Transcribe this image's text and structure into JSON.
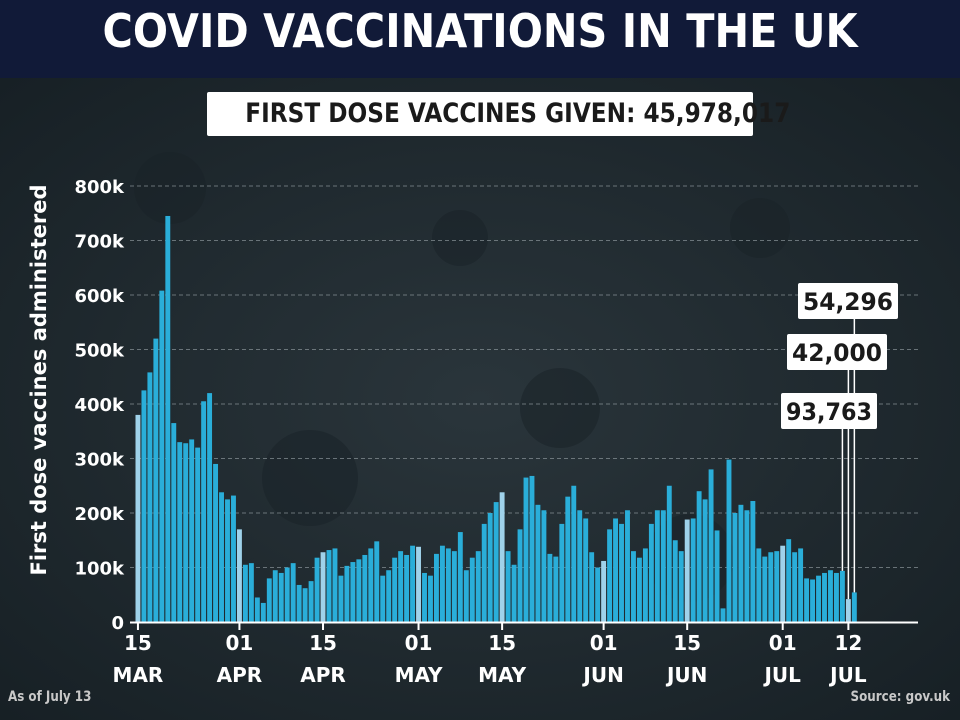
{
  "header": {
    "title": "COVID VACCINATIONS IN THE UK",
    "subtitle": "FIRST DOSE VACCINES GIVEN: 45,978,017"
  },
  "footer": {
    "as_of": "As of July 13",
    "source": "Source: gov.uk"
  },
  "colors": {
    "header_bg": "#111a38",
    "background": "#1f2a2f",
    "bar": "#2aaed9",
    "bar_highlight": "#9fd2ea",
    "text": "#ffffff"
  },
  "chart_data": {
    "type": "bar",
    "title": "COVID VACCINATIONS IN THE UK",
    "ylabel": "First dose vaccines administered",
    "xlabel": "",
    "ylim": [
      0,
      800000
    ],
    "y_ticks": [
      "0",
      "100k",
      "200k",
      "300k",
      "400k",
      "500k",
      "600k",
      "700k",
      "800k"
    ],
    "x_ticks": [
      {
        "day": 1,
        "label": [
          "15",
          "MAR"
        ]
      },
      {
        "day": 18,
        "label": [
          "01",
          "APR"
        ]
      },
      {
        "day": 32,
        "label": [
          "15",
          "APR"
        ]
      },
      {
        "day": 48,
        "label": [
          "01",
          "MAY"
        ]
      },
      {
        "day": 62,
        "label": [
          "15",
          "MAY"
        ]
      },
      {
        "day": 79,
        "label": [
          "01",
          "JUN"
        ]
      },
      {
        "day": 93,
        "label": [
          "15",
          "JUN"
        ]
      },
      {
        "day": 109,
        "label": [
          "01",
          "JUL"
        ]
      },
      {
        "day": 120,
        "label": [
          "12",
          "JUL"
        ]
      }
    ],
    "grid": true,
    "series": [
      {
        "values": [
          380000,
          425000,
          458000,
          520000,
          608000,
          745000,
          365000,
          330000,
          328000,
          335000,
          320000,
          405000,
          420000,
          290000,
          238000,
          225000,
          232000,
          170000,
          105000,
          108000,
          45000,
          35000,
          80000,
          95000,
          90000,
          100000,
          108000,
          68000,
          62000,
          75000,
          118000,
          128000,
          132000,
          135000,
          85000,
          103000,
          110000,
          115000,
          123000,
          135000,
          148000,
          85000,
          95000,
          118000,
          130000,
          123000,
          140000,
          138000,
          90000,
          85000,
          125000,
          140000,
          135000,
          130000,
          165000,
          95000,
          118000,
          130000,
          180000,
          200000,
          220000,
          238000,
          130000,
          105000,
          170000,
          265000,
          268000,
          215000,
          205000,
          125000,
          120000,
          180000,
          230000,
          250000,
          205000,
          190000,
          128000,
          100000,
          112000,
          170000,
          190000,
          180000,
          205000,
          130000,
          118000,
          135000,
          180000,
          205000,
          205000,
          250000,
          150000,
          130000,
          188000,
          190000,
          240000,
          225000,
          280000,
          168000,
          25000,
          298000,
          200000,
          215000,
          205000,
          222000,
          135000,
          120000,
          128000,
          130000,
          140000,
          152000,
          128000,
          135000,
          80000,
          78000,
          85000,
          90000,
          95000,
          90000,
          93763,
          42000,
          54296
        ]
      }
    ],
    "highlight_days": [
      1,
      18,
      32,
      48,
      62,
      79,
      93,
      109,
      120
    ],
    "callouts": [
      {
        "label": "54,296",
        "day": 121
      },
      {
        "label": "42,000",
        "day": 120
      },
      {
        "label": "93,763",
        "day": 119
      }
    ]
  }
}
